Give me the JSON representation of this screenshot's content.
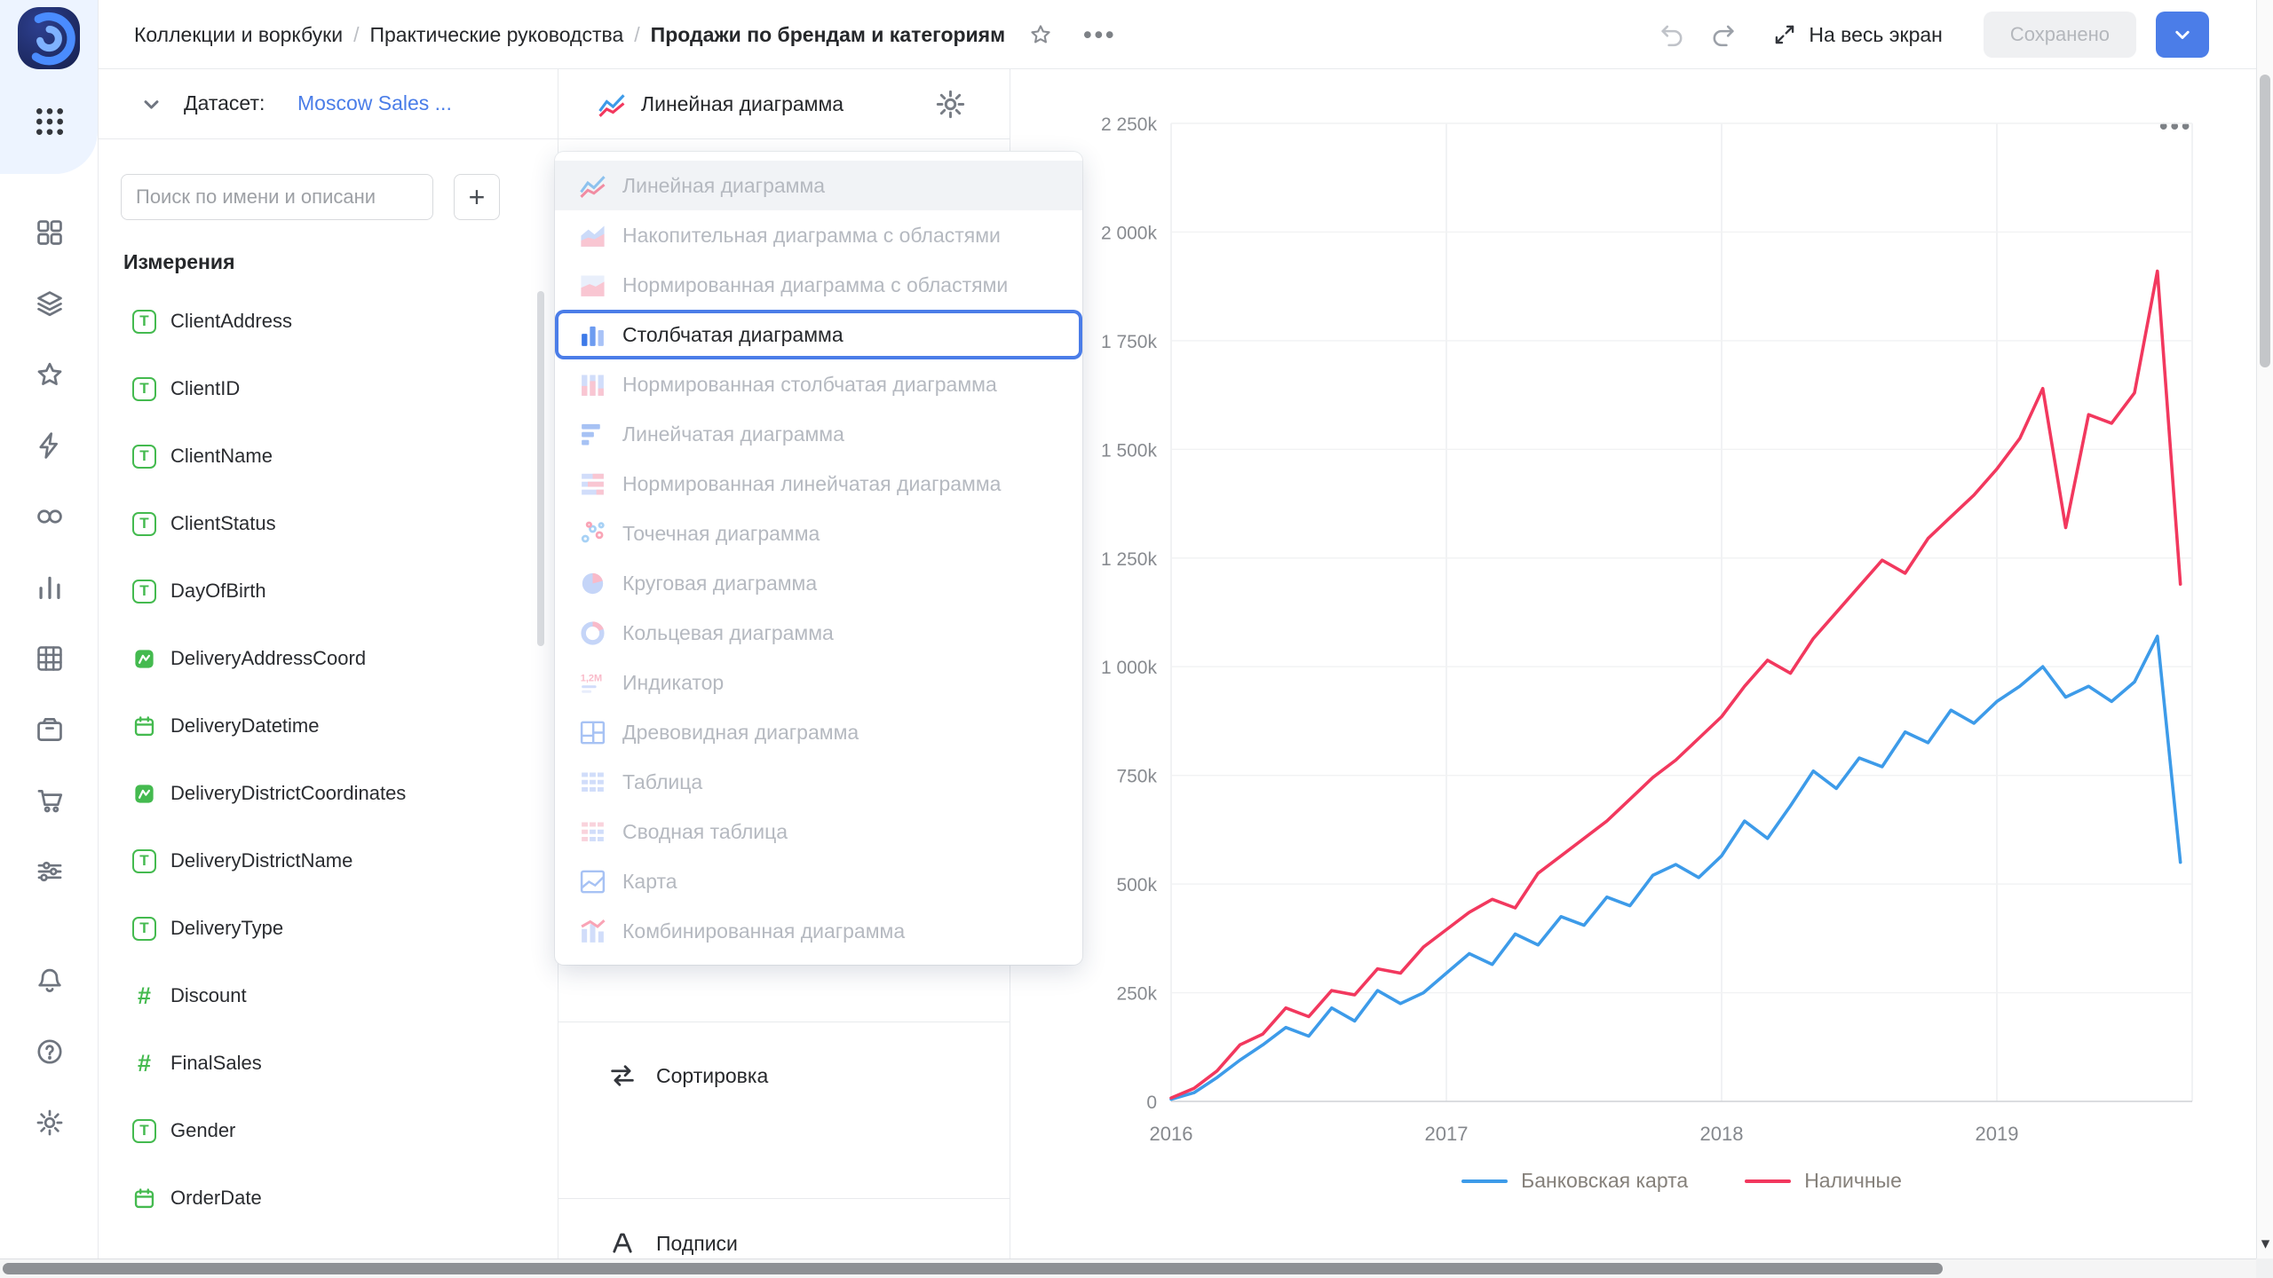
{
  "topbar": {
    "breadcrumbs": [
      "Коллекции и воркбуки",
      "Практические руководства",
      "Продажи по брендам и категориям"
    ],
    "separator": "/",
    "fullscreen_label": "На весь экран",
    "saved_label": "Сохранено"
  },
  "ui": {
    "ellipsis": "•••",
    "scroll_down_arrow": "▾"
  },
  "rail": {
    "nav_icons": [
      "collections",
      "workbooks",
      "favorites",
      "editor",
      "connections",
      "charts",
      "tables",
      "storage",
      "marketplace",
      "services"
    ],
    "bottom_icons": [
      "notifications",
      "help",
      "settings"
    ]
  },
  "dataset_panel": {
    "label": "Датасет:",
    "dataset_name": "Moscow Sales ...",
    "search_placeholder": "Поиск по имени и описани",
    "add_field_label": "+",
    "section_title": "Измерения",
    "fields": [
      {
        "name": "ClientAddress",
        "type": "string"
      },
      {
        "name": "ClientID",
        "type": "string"
      },
      {
        "name": "ClientName",
        "type": "string"
      },
      {
        "name": "ClientStatus",
        "type": "string"
      },
      {
        "name": "DayOfBirth",
        "type": "string"
      },
      {
        "name": "DeliveryAddressCoord",
        "type": "geo"
      },
      {
        "name": "DeliveryDatetime",
        "type": "date"
      },
      {
        "name": "DeliveryDistrictCoordinates",
        "type": "geo"
      },
      {
        "name": "DeliveryDistrictName",
        "type": "string"
      },
      {
        "name": "DeliveryType",
        "type": "string"
      },
      {
        "name": "Discount",
        "type": "number"
      },
      {
        "name": "FinalSales",
        "type": "number"
      },
      {
        "name": "Gender",
        "type": "string"
      },
      {
        "name": "OrderDate",
        "type": "date"
      }
    ]
  },
  "chart_type_panel": {
    "current_type": "Линейная диаграмма",
    "menu_items": [
      {
        "label": "Линейная диаграмма",
        "icon": "line",
        "state": "current"
      },
      {
        "label": "Накопительная диаграмма с областями",
        "icon": "area",
        "state": "disabled"
      },
      {
        "label": "Нормированная диаграмма с областями",
        "icon": "area100",
        "state": "disabled"
      },
      {
        "label": "Столбчатая диаграмма",
        "icon": "column",
        "state": "focused"
      },
      {
        "label": "Нормированная столбчатая диаграмма",
        "icon": "column100",
        "state": "disabled"
      },
      {
        "label": "Линейчатая диаграмма",
        "icon": "bar",
        "state": "disabled"
      },
      {
        "label": "Нормированная линейчатая диаграмма",
        "icon": "bar100",
        "state": "disabled"
      },
      {
        "label": "Точечная диаграмма",
        "icon": "scatter",
        "state": "disabled"
      },
      {
        "label": "Круговая диаграмма",
        "icon": "pie",
        "state": "disabled"
      },
      {
        "label": "Кольцевая диаграмма",
        "icon": "donut",
        "state": "disabled"
      },
      {
        "label": "Индикатор",
        "icon": "metric",
        "state": "disabled"
      },
      {
        "label": "Древовидная диаграмма",
        "icon": "treemap",
        "state": "disabled"
      },
      {
        "label": "Таблица",
        "icon": "table",
        "state": "disabled"
      },
      {
        "label": "Сводная таблица",
        "icon": "pivot",
        "state": "disabled"
      },
      {
        "label": "Карта",
        "icon": "geo",
        "state": "disabled"
      },
      {
        "label": "Комбинированная диаграмма",
        "icon": "combo",
        "state": "disabled"
      }
    ],
    "sections": [
      {
        "label": "Сортировка",
        "icon": "sort"
      },
      {
        "label": "Подписи",
        "icon": "labels"
      }
    ]
  },
  "chart_data": {
    "type": "line",
    "unit": "thousands (k)",
    "x_start": "2016-01",
    "x_interval": "month",
    "x_tick_labels": [
      "2016",
      "2017",
      "2018",
      "2019"
    ],
    "y_ticks_k": [
      0,
      250,
      500,
      750,
      1000,
      1250,
      1500,
      1750,
      2000,
      2250
    ],
    "y_tick_labels": [
      "0",
      "250k",
      "500k",
      "750k",
      "1 000k",
      "1 250k",
      "1 500k",
      "1 750k",
      "2 000k",
      "2 250k"
    ],
    "ylim_k": [
      0,
      2250
    ],
    "grid": true,
    "legend_position": "bottom",
    "series": [
      {
        "name": "Банковская карта",
        "color": "#3d9be9",
        "values_k": [
          5,
          20,
          55,
          95,
          130,
          170,
          150,
          215,
          185,
          255,
          225,
          250,
          295,
          340,
          315,
          385,
          360,
          425,
          405,
          470,
          450,
          520,
          545,
          515,
          565,
          645,
          605,
          680,
          760,
          720,
          790,
          770,
          850,
          825,
          900,
          870,
          920,
          955,
          1000,
          930,
          955,
          920,
          965,
          1070,
          550
        ]
      },
      {
        "name": "Наличные",
        "color": "#f2385e",
        "values_k": [
          8,
          30,
          70,
          130,
          155,
          215,
          195,
          255,
          245,
          305,
          295,
          355,
          395,
          435,
          465,
          445,
          525,
          565,
          605,
          645,
          695,
          745,
          785,
          835,
          885,
          955,
          1015,
          985,
          1065,
          1125,
          1185,
          1245,
          1215,
          1295,
          1345,
          1395,
          1455,
          1525,
          1640,
          1320,
          1580,
          1560,
          1630,
          1910,
          1190
        ]
      }
    ]
  },
  "colors": {
    "accent_blue": "#4b7de8",
    "link_blue": "#4a7de8",
    "field_icon_green": "#44ba4f",
    "series_blue": "#3d9be9",
    "series_red": "#f2385e",
    "focus_ring": "#4b7de8"
  }
}
